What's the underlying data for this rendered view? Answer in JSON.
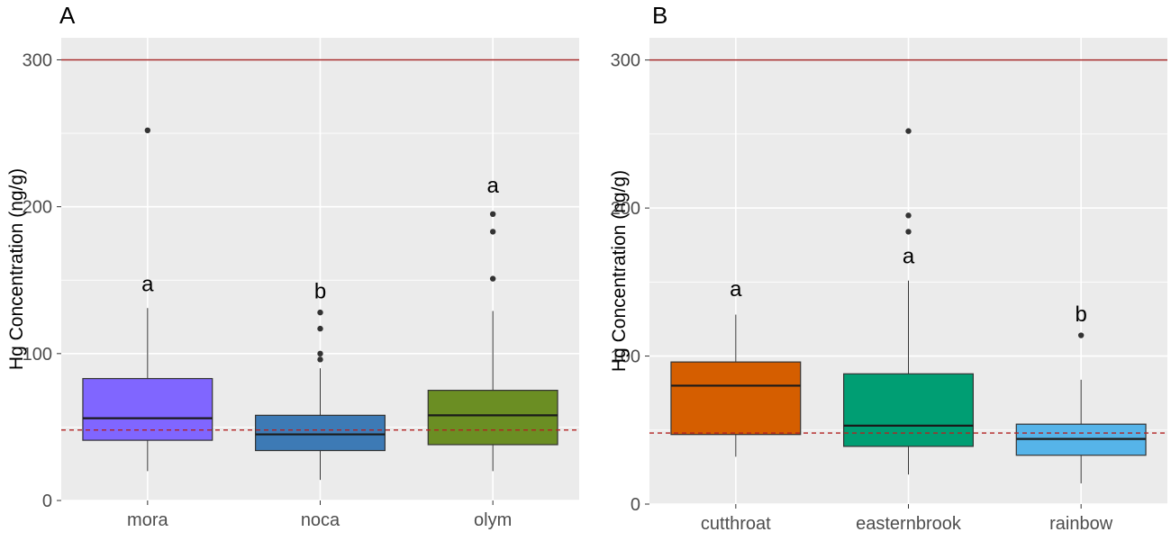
{
  "figure": {
    "panel_a_label": "A",
    "panel_b_label": "B"
  },
  "colors": {
    "panel_bg": "#EBEBEB",
    "grid": "#FFFFFF",
    "threshold_line": "#A52A2A",
    "reference_line": "#B22222",
    "whisker": "#333333",
    "outlier": "#333333",
    "axis_text": "#4D4D4D"
  },
  "chart_data": [
    {
      "type": "box",
      "panel": "A",
      "ylabel": "Hg Concentration (ng/g)",
      "xlabel": "",
      "ylim": [
        0,
        315
      ],
      "yticks": [
        0,
        100,
        200,
        300
      ],
      "threshold_line": 300,
      "reference_line": 48,
      "categories": [
        "mora",
        "noca",
        "olym"
      ],
      "boxes": [
        {
          "category": "mora",
          "color": "#8066FF",
          "q1": 41,
          "median": 56,
          "q3": 83,
          "whisker_low": 20,
          "whisker_high": 131,
          "outliers": [
            252
          ],
          "letter": "a",
          "letter_y": 148
        },
        {
          "category": "noca",
          "color": "#3D7AB5",
          "q1": 34,
          "median": 45,
          "q3": 58,
          "whisker_low": 14,
          "whisker_high": 90,
          "outliers": [
            96,
            100,
            117,
            128
          ],
          "letter": "b",
          "letter_y": 143
        },
        {
          "category": "olym",
          "color": "#6B8E23",
          "q1": 38,
          "median": 58,
          "q3": 75,
          "whisker_low": 20,
          "whisker_high": 129,
          "outliers": [
            151,
            183,
            195
          ],
          "letter": "a",
          "letter_y": 215
        }
      ]
    },
    {
      "type": "box",
      "panel": "B",
      "ylabel": "Hg Concentration (ng/g)",
      "xlabel": "",
      "ylim": [
        0,
        315
      ],
      "yticks": [
        0,
        100,
        200,
        300
      ],
      "threshold_line": 300,
      "reference_line": 48,
      "categories": [
        "cutthroat",
        "easternbrook",
        "rainbow"
      ],
      "boxes": [
        {
          "category": "cutthroat",
          "color": "#D55E00",
          "q1": 47,
          "median": 80,
          "q3": 96,
          "whisker_low": 32,
          "whisker_high": 128,
          "outliers": [],
          "letter": "a",
          "letter_y": 146
        },
        {
          "category": "easternbrook",
          "color": "#009E73",
          "q1": 39,
          "median": 53,
          "q3": 88,
          "whisker_low": 20,
          "whisker_high": 151,
          "outliers": [
            184,
            195,
            252
          ],
          "letter": "a",
          "letter_y": 168
        },
        {
          "category": "rainbow",
          "color": "#56B4E9",
          "q1": 33,
          "median": 44,
          "q3": 54,
          "whisker_low": 14,
          "whisker_high": 84,
          "outliers": [
            114
          ],
          "letter": "b",
          "letter_y": 129
        }
      ]
    }
  ]
}
